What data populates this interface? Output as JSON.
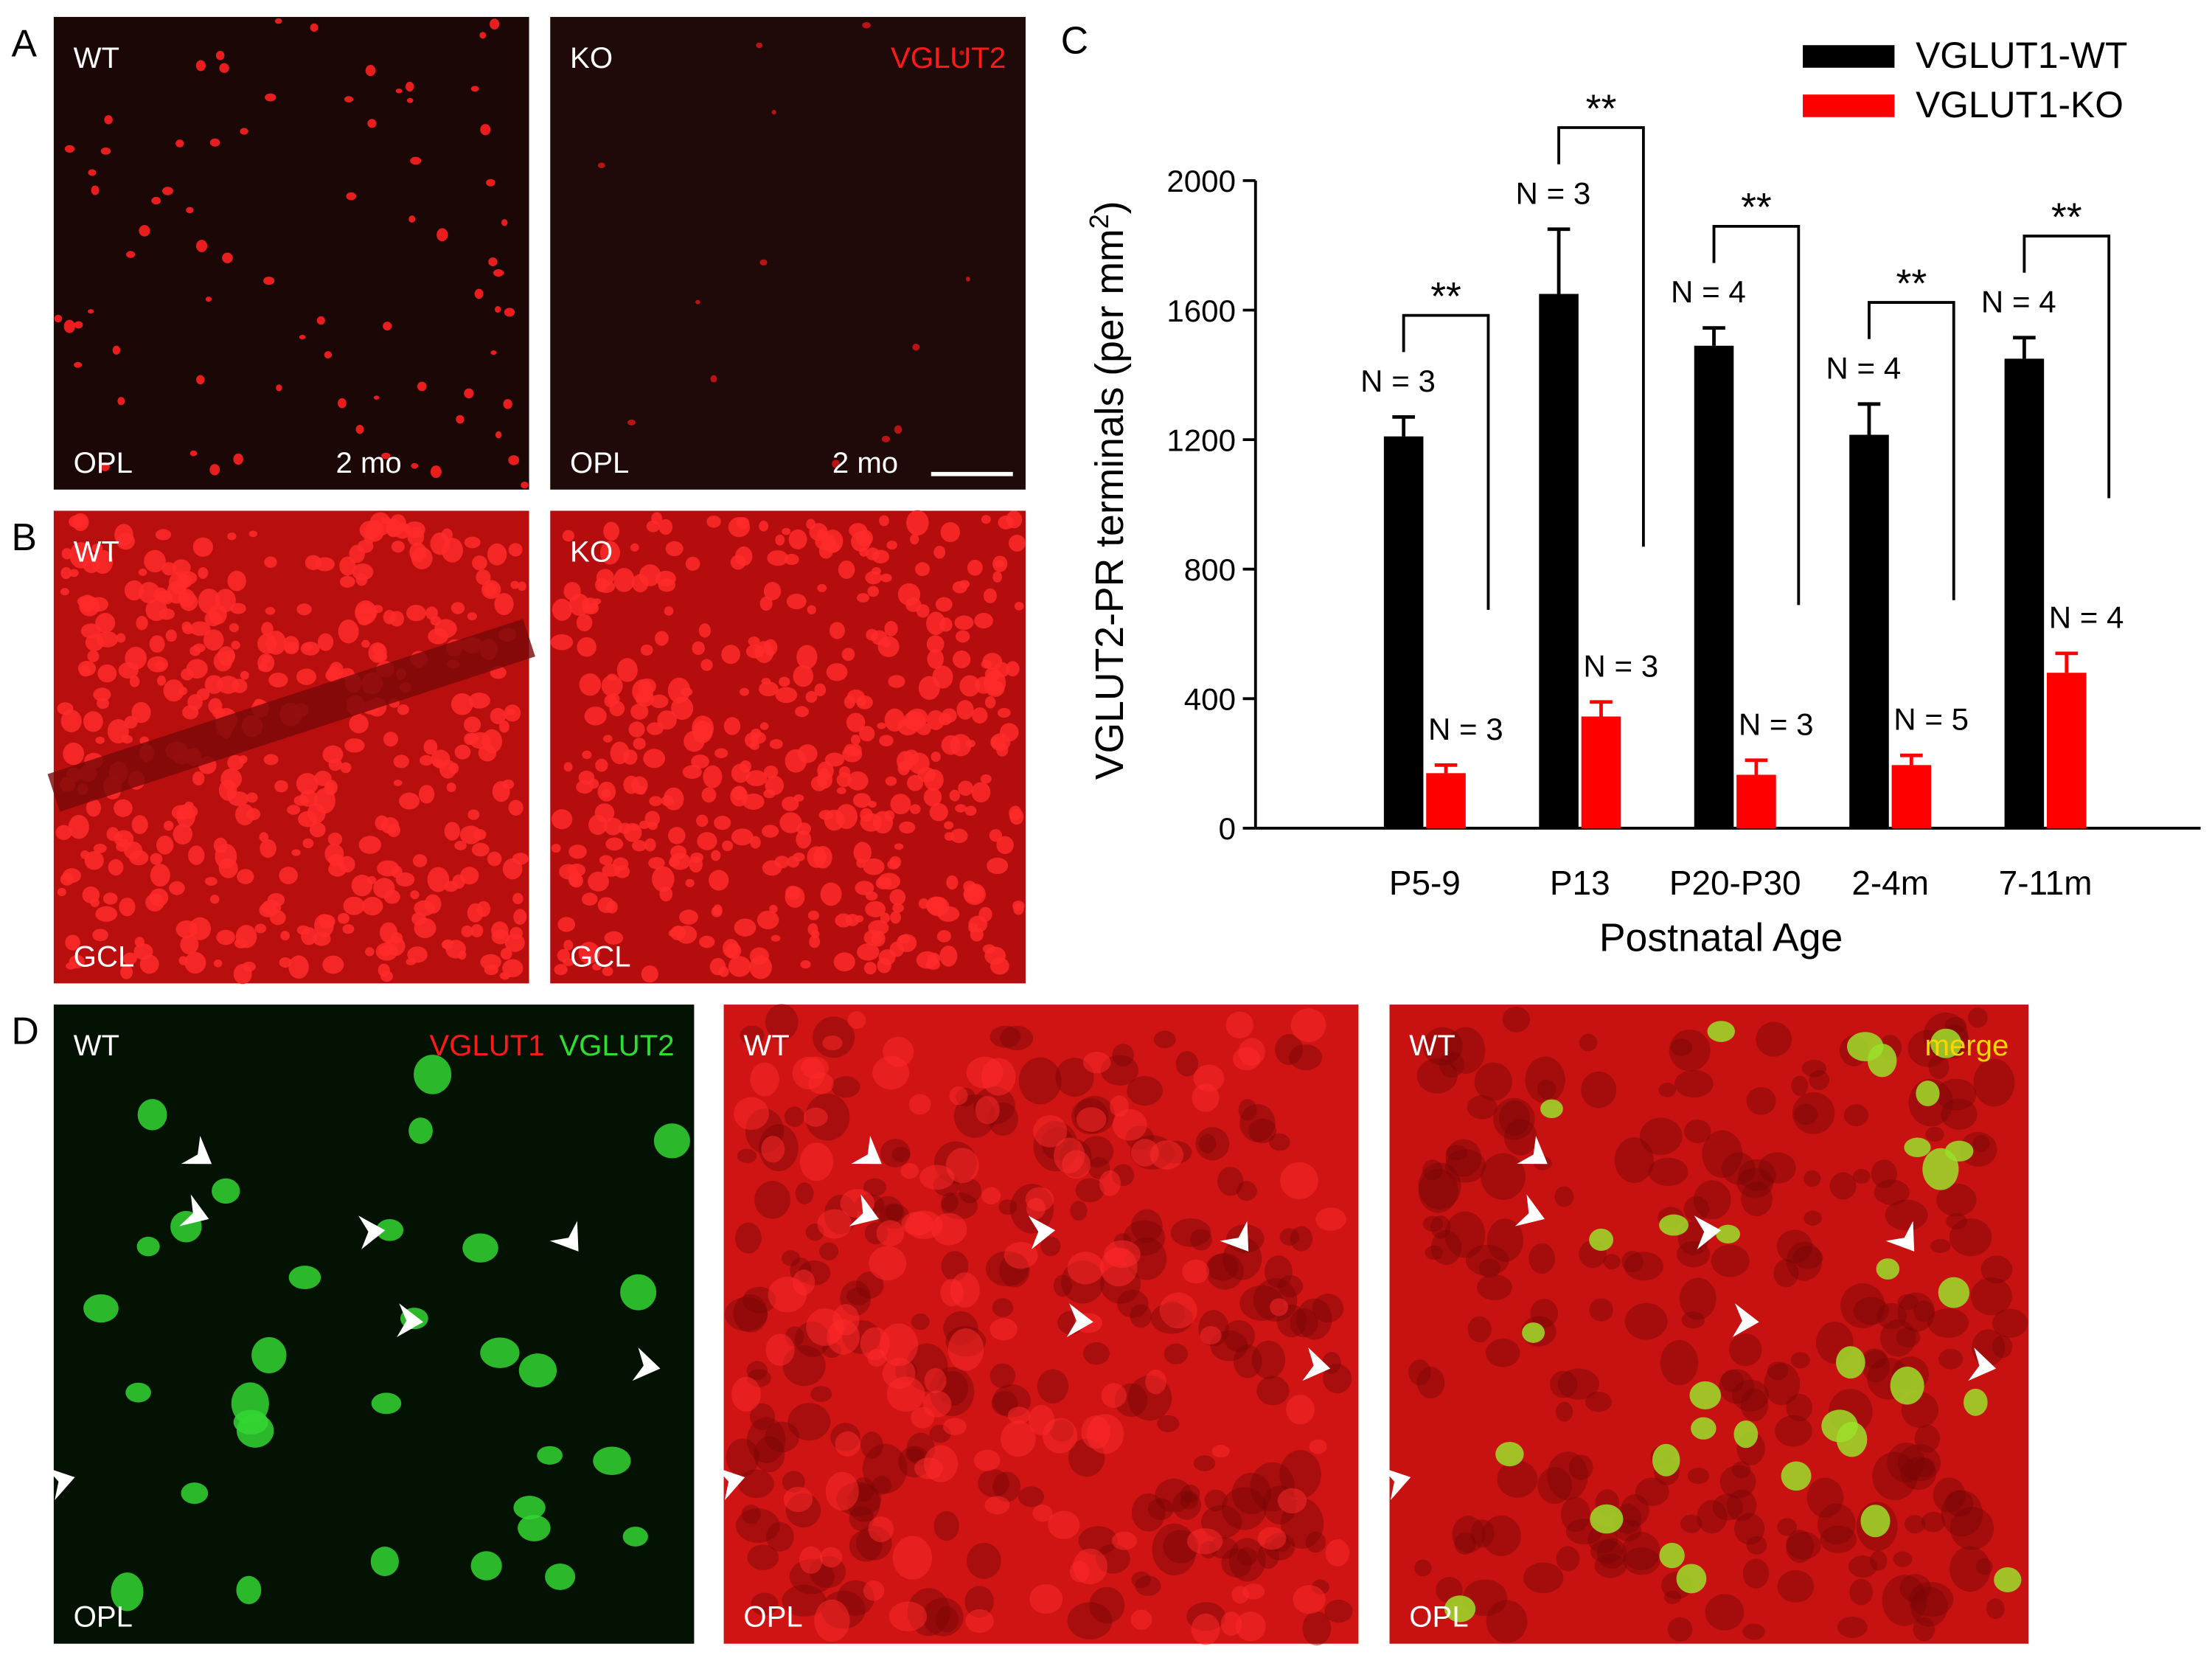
{
  "figure": {
    "panel_labels": [
      "A",
      "B",
      "C",
      "D"
    ],
    "images": [
      {
        "tl": "WT",
        "bl": "OPL",
        "br": "2 mo"
      },
      {
        "tl": "KO",
        "tr": "VGLUT2",
        "bl": "OPL",
        "br": "2 mo"
      },
      {
        "tl": "WT",
        "bl": "GCL"
      },
      {
        "tl": "KO",
        "bl": "GCL"
      },
      {
        "tl": "WT",
        "tr": "VGLUT1",
        "tr2": "VGLUT2",
        "bl": "OPL"
      },
      {
        "tl": "WT",
        "bl": "OPL"
      },
      {
        "tl": "WT",
        "tr": "merge",
        "bl": "OPL"
      }
    ]
  },
  "chart_data": {
    "type": "bar",
    "ylabel": "VGLUT2-PR terminals (per mm",
    "ylabel_sup": "2",
    "ylabel_end": ")",
    "xlabel": "Postnatal Age",
    "categories": [
      "P5-9",
      "P13",
      "P20-P30",
      "2-4m",
      "7-11m"
    ],
    "series": [
      {
        "name": "VGLUT1-WT",
        "color": "#000000",
        "values": [
          1210,
          1650,
          1490,
          1215,
          1450
        ],
        "errors": [
          60,
          200,
          55,
          95,
          65
        ],
        "n_labels": [
          "N = 3",
          "N = 3",
          "N = 4",
          "N = 4",
          "N = 4"
        ]
      },
      {
        "name": "VGLUT1-KO",
        "color": "#ff0000",
        "values": [
          170,
          345,
          165,
          195,
          480
        ],
        "errors": [
          25,
          45,
          45,
          30,
          60
        ],
        "n_labels": [
          "N = 3",
          "N = 3",
          "N = 3",
          "N = 5",
          "N = 4"
        ]
      }
    ],
    "significance": [
      "**",
      "**",
      "**",
      "**",
      "**"
    ],
    "ylim": [
      0,
      2000
    ],
    "yticks": [
      0,
      400,
      800,
      1200,
      1600,
      2000
    ]
  }
}
